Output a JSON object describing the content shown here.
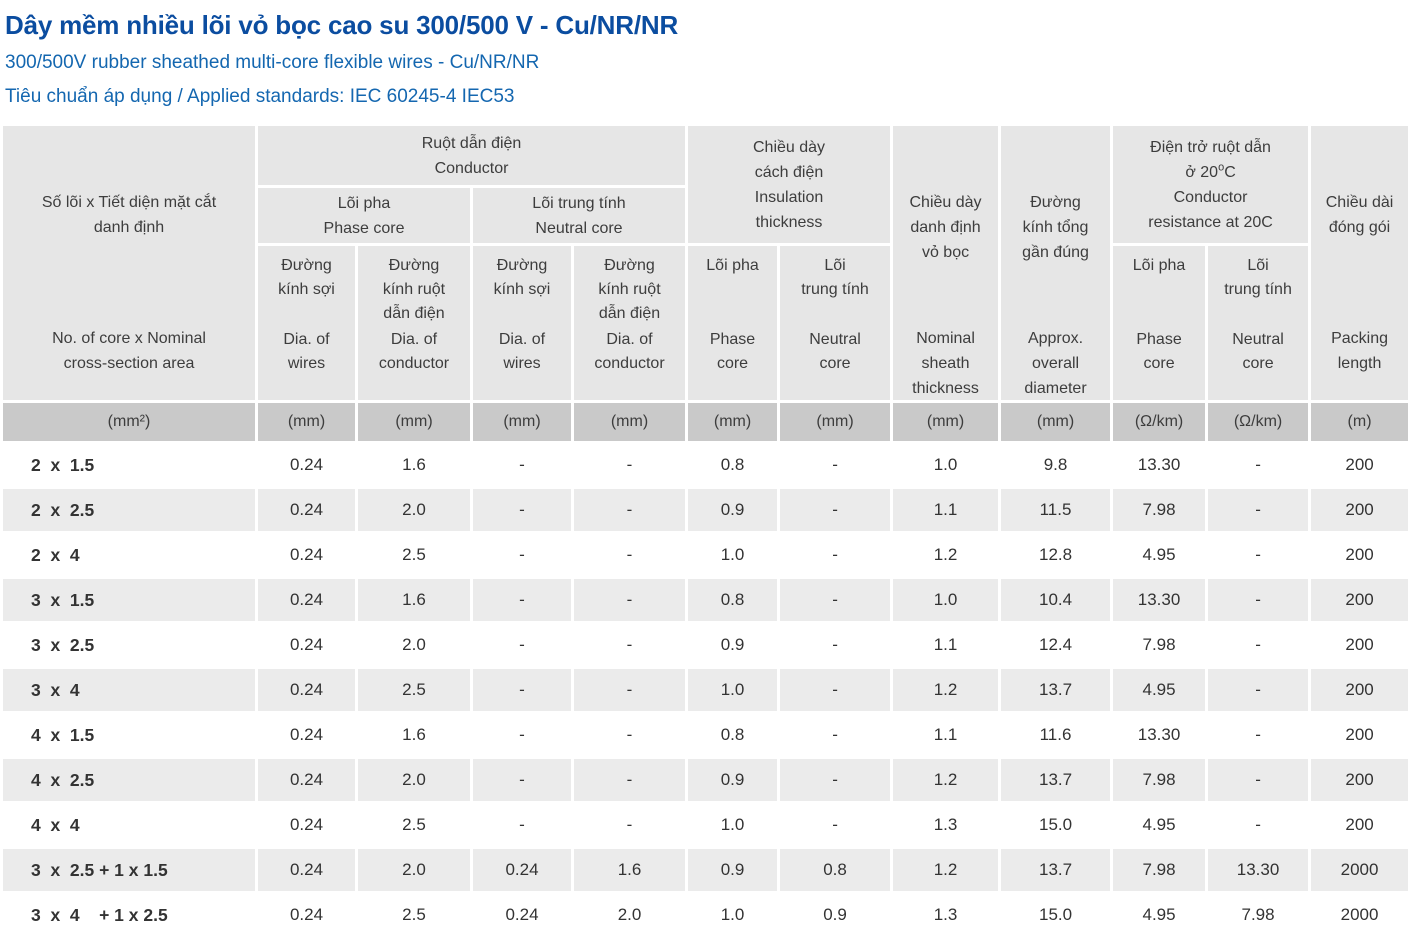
{
  "page": {
    "title": "Dây mềm nhiều lõi vỏ bọc cao su 300/500 V - Cu/NR/NR",
    "subtitle_en": "300/500V rubber sheathed multi-core flexible wires - Cu/NR/NR",
    "standards_line": "Tiêu chuẩn áp dụng / Applied standards: IEC 60245-4 IEC53"
  },
  "colors": {
    "title_blue": "#0b4da0",
    "subtitle_blue": "#1467b0",
    "header_gray": "#e6e6e6",
    "units_gray": "#c9c9c9",
    "row_alt_gray": "#ebebeb"
  },
  "table": {
    "header": {
      "core_size": {
        "vi": "Số lõi x Tiết diện mặt cắt\ndanh định",
        "en": "No. of core x Nominal\ncross-section area"
      },
      "conductor": {
        "vi": "Ruột dẫn điện",
        "en": "Conductor"
      },
      "phase_core_group": {
        "vi": "Lõi pha",
        "en": "Phase core"
      },
      "neutral_core_group": {
        "vi": "Lõi trung tính",
        "en": "Neutral core"
      },
      "dia_wires_phase": {
        "vi": "Đường\nkính sợi",
        "en": "Dia. of\nwires"
      },
      "dia_conductor_phase": {
        "vi": "Đường\nkính ruột\ndẫn điện",
        "en": "Dia. of\nconductor"
      },
      "dia_wires_neutral": {
        "vi": "Đường\nkính sợi",
        "en": "Dia. of\nwires"
      },
      "dia_conductor_neutral": {
        "vi": "Đường\nkính ruột\ndẫn điện",
        "en": "Dia. of\nconductor"
      },
      "insulation": {
        "vi": "Chiều dày\ncách điện",
        "en": "Insulation\nthickness"
      },
      "insulation_phase": {
        "vi": "Lõi pha",
        "en": "Phase\ncore"
      },
      "insulation_neutral": {
        "vi": "Lõi\ntrung tính",
        "en": "Neutral\ncore"
      },
      "sheath": {
        "vi": "Chiều dày\ndanh định\nvỏ bọc",
        "en": "Nominal\nsheath\nthickness"
      },
      "overall_diameter": {
        "vi": "Đường\nkính tổng\ngần đúng",
        "en": "Approx.\noverall\ndiameter"
      },
      "resistance": {
        "vi_line1": "Điện trở ruột dẫn",
        "vi_line2_pre": "ở 20",
        "vi_sup": "o",
        "vi_line2_post": "C",
        "en": "Conductor\nresistance at 20C"
      },
      "resistance_phase": {
        "vi": "Lõi pha",
        "en": "Phase\ncore"
      },
      "resistance_neutral": {
        "vi": "Lõi\ntrung tính",
        "en": "Neutral\ncore"
      },
      "packing": {
        "vi": "Chiều dài\nđóng gói",
        "en": "Packing\nlength"
      }
    },
    "units": [
      "(mm²)",
      "(mm)",
      "(mm)",
      "(mm)",
      "(mm)",
      "(mm)",
      "(mm)",
      "(mm)",
      "(mm)",
      "(Ω/km)",
      "(Ω/km)",
      "(m)"
    ],
    "rows": [
      [
        "2  x  1.5",
        "0.24",
        "1.6",
        "-",
        "-",
        "0.8",
        "-",
        "1.0",
        "9.8",
        "13.30",
        "-",
        "200"
      ],
      [
        "2  x  2.5",
        "0.24",
        "2.0",
        "-",
        "-",
        "0.9",
        "-",
        "1.1",
        "11.5",
        "7.98",
        "-",
        "200"
      ],
      [
        "2  x  4",
        "0.24",
        "2.5",
        "-",
        "-",
        "1.0",
        "-",
        "1.2",
        "12.8",
        "4.95",
        "-",
        "200"
      ],
      [
        "3  x  1.5",
        "0.24",
        "1.6",
        "-",
        "-",
        "0.8",
        "-",
        "1.0",
        "10.4",
        "13.30",
        "-",
        "200"
      ],
      [
        "3  x  2.5",
        "0.24",
        "2.0",
        "-",
        "-",
        "0.9",
        "-",
        "1.1",
        "12.4",
        "7.98",
        "-",
        "200"
      ],
      [
        "3  x  4",
        "0.24",
        "2.5",
        "-",
        "-",
        "1.0",
        "-",
        "1.2",
        "13.7",
        "4.95",
        "-",
        "200"
      ],
      [
        "4  x  1.5",
        "0.24",
        "1.6",
        "-",
        "-",
        "0.8",
        "-",
        "1.1",
        "11.6",
        "13.30",
        "-",
        "200"
      ],
      [
        "4  x  2.5",
        "0.24",
        "2.0",
        "-",
        "-",
        "0.9",
        "-",
        "1.2",
        "13.7",
        "7.98",
        "-",
        "200"
      ],
      [
        "4  x  4",
        "0.24",
        "2.5",
        "-",
        "-",
        "1.0",
        "-",
        "1.3",
        "15.0",
        "4.95",
        "-",
        "200"
      ],
      [
        "3  x  2.5 + 1 x 1.5",
        "0.24",
        "2.0",
        "0.24",
        "1.6",
        "0.9",
        "0.8",
        "1.2",
        "13.7",
        "7.98",
        "13.30",
        "2000"
      ],
      [
        "3  x  4    + 1 x 2.5",
        "0.24",
        "2.5",
        "0.24",
        "2.0",
        "1.0",
        "0.9",
        "1.3",
        "15.0",
        "4.95",
        "7.98",
        "2000"
      ]
    ]
  }
}
